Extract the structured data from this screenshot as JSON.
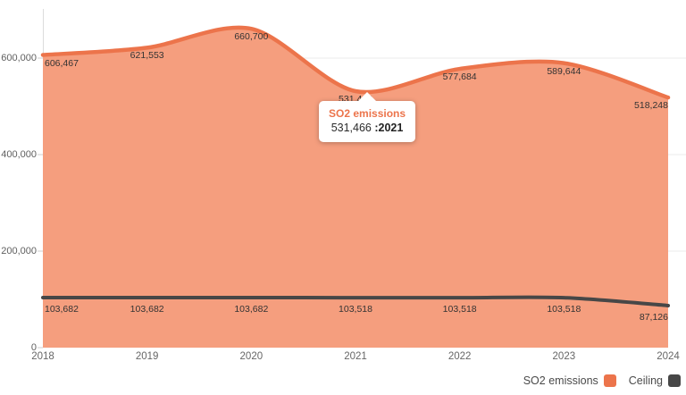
{
  "chart_data": {
    "type": "area",
    "title": "",
    "x": [
      2018,
      2019,
      2020,
      2021,
      2022,
      2023,
      2024
    ],
    "xtick_labels": [
      "2018",
      "2019",
      "2020",
      "2021",
      "2022",
      "2023",
      "2024"
    ],
    "series": [
      {
        "name": "SO2 emissions",
        "values": [
          606467,
          621553,
          660700,
          531466,
          577684,
          589644,
          518248
        ],
        "labels": [
          "606,467",
          "621,553",
          "660,700",
          "531,466",
          "577,684",
          "589,644",
          "518,248"
        ],
        "line_color": "#EC744B",
        "fill_color": "#F59E7E"
      },
      {
        "name": "Ceiling",
        "values": [
          103682,
          103682,
          103682,
          103518,
          103518,
          103518,
          87126
        ],
        "labels": [
          "103,682",
          "103,682",
          "103,682",
          "103,518",
          "103,518",
          "103,518",
          "87,126"
        ],
        "line_color": "#474747"
      }
    ],
    "yticks": {
      "values": [
        0,
        200000,
        400000,
        600000
      ],
      "labels": [
        "0",
        "200,000",
        "400,000",
        "600,000"
      ]
    },
    "ylim": [
      0,
      660700
    ],
    "grid": "horizontal",
    "grid_color": "#EBEBEB",
    "axis_color": "#DCDCDC",
    "legend_position": "bottom-right"
  },
  "tooltip": {
    "title": "SO2 emissions",
    "value": "531,466",
    "year": ":2021",
    "point_year": "2021",
    "accent_color": "#EC744B"
  },
  "legend": {
    "items": [
      {
        "label": "SO2 emissions",
        "color": "#EC744B"
      },
      {
        "label": "Ceiling",
        "color": "#474747"
      }
    ]
  }
}
